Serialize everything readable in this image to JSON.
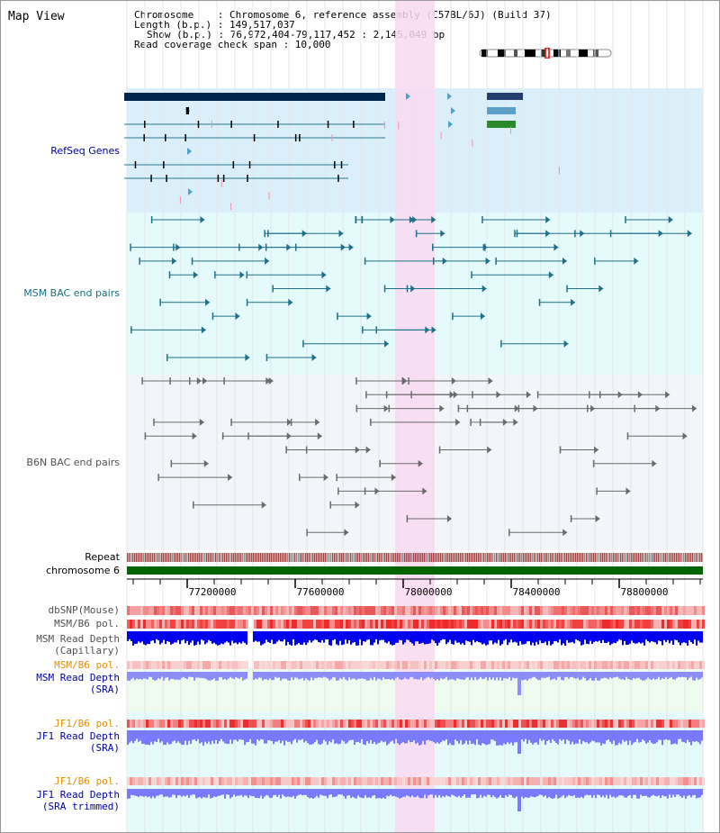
{
  "title": "Map View",
  "info": {
    "chromosome": "Chromosome    : Chromosome 6, reference assembly (C57BL/6J) (Build 37)",
    "length": "Length (b.p.) : 149,517,037",
    "show": "Show (b.p.) : 76,972,404-79,117,452 : 2,145,049 bp",
    "span": "Read coverage check span : 10,000"
  },
  "tracks": {
    "refseq": "RefSeq Genes",
    "msm_bac": "MSM BAC end pairs",
    "b6n_bac": "B6N BAC end pairs",
    "repeat": "Repeat",
    "chromosome": "chromosome 6",
    "dbsnp": "dbSNP(Mouse)",
    "msm_b6_pol": "MSM/B6 pol.",
    "msm_depth_cap_1": "MSM Read Depth",
    "msm_depth_cap_2": "(Capillary)",
    "msm_b6_pol_2": "MSM/B6 pol.",
    "msm_depth_sra_1": "MSM Read Depth",
    "msm_depth_sra_2": "(SRA)",
    "jf1_b6_pol": "JF1/B6 pol.",
    "jf1_depth_sra_1": "JF1 Read Depth",
    "jf1_depth_sra_2": "(SRA)",
    "jf1_b6_pol_2": "JF1/B6 pol.",
    "jf1_depth_trim_1": "JF1 Read Depth",
    "jf1_depth_trim_2": "(SRA trimmed)"
  },
  "axis": {
    "ticks": [
      "77200000",
      "77600000",
      "78000000",
      "78400000",
      "78800000"
    ]
  },
  "colors": {
    "refseq_bg": "#dbeffa",
    "msm_bg": "#e5fafa",
    "b6n_bg": "#f2f5f9",
    "highlight": "#f9d9f1",
    "chromosome_bar": "#006400",
    "depth_capillary": "#0000ee",
    "depth_sra": "#8d8dff"
  }
}
